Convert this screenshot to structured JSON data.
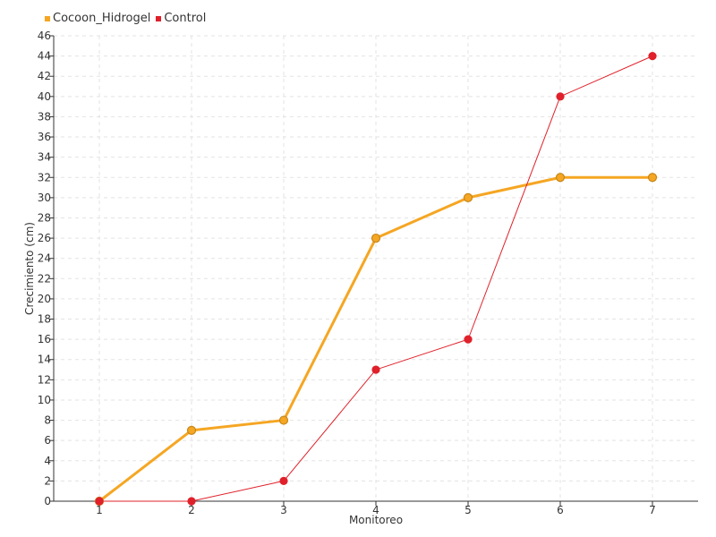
{
  "chart_data": {
    "type": "line",
    "title": "",
    "xlabel": "Monitoreo",
    "ylabel": "Crecimiento (cm)",
    "categories": [
      "1",
      "2",
      "3",
      "4",
      "5",
      "6",
      "7"
    ],
    "x_tick_labels": [
      "1",
      "2",
      "3",
      "4",
      "5",
      "6",
      "7"
    ],
    "y_tick_labels": [
      "0",
      "2",
      "4",
      "6",
      "8",
      "10",
      "12",
      "14",
      "16",
      "18",
      "20",
      "22",
      "24",
      "26",
      "28",
      "30",
      "32",
      "34",
      "36",
      "38",
      "40",
      "42",
      "44",
      "46"
    ],
    "ylim": [
      0,
      46
    ],
    "y_tick_step": 2,
    "grid": true,
    "legend_position": "top-left",
    "series": [
      {
        "name": "Cocoon_Hidrogel",
        "color": "#f5a623",
        "values": [
          0,
          7,
          8,
          26,
          30,
          32,
          32
        ]
      },
      {
        "name": "Control",
        "color": "#e0202a",
        "values": [
          0,
          0,
          2,
          13,
          16,
          40,
          44
        ]
      }
    ]
  }
}
